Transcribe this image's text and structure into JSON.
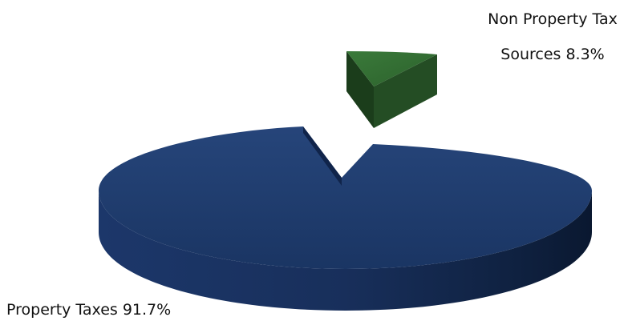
{
  "chart_data": {
    "type": "pie",
    "style": "3d-exploded",
    "slices": [
      {
        "label_lines": [
          "Property Taxes 91.7%"
        ],
        "value": 91.7,
        "color": "#1f3864"
      },
      {
        "label_lines": [
          "Non Property Tax",
          "Sources 8.3%"
        ],
        "value": 8.3,
        "color": "#2e5f2e",
        "exploded": true
      }
    ],
    "legend": "none"
  }
}
